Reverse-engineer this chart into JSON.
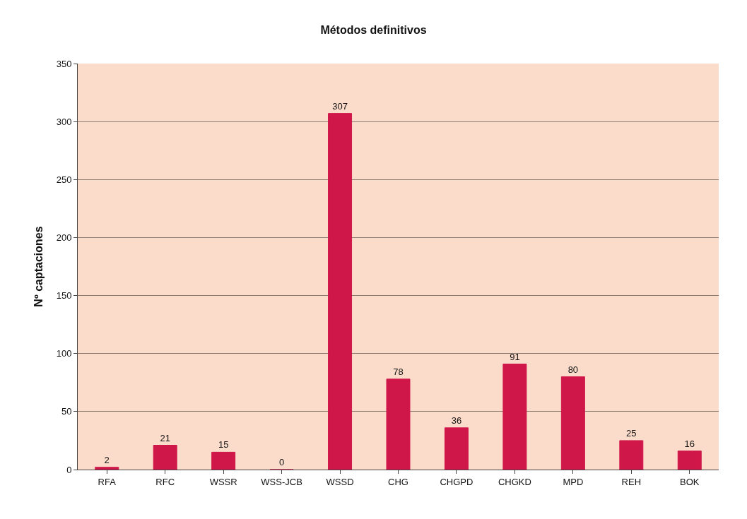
{
  "chart_data": {
    "type": "bar",
    "title": "Métodos definitivos",
    "ylabel": "Nº captaciones",
    "categories": [
      "RFA",
      "RFC",
      "WSSR",
      "WSS-JCB",
      "WSSD",
      "CHG",
      "CHGPD",
      "CHGKD",
      "MPD",
      "REH",
      "BOK"
    ],
    "values": [
      2,
      21,
      15,
      0,
      307,
      78,
      36,
      91,
      80,
      25,
      16
    ],
    "color": "#d0174a",
    "ylim": [
      0,
      350
    ],
    "yticks": [
      0,
      50,
      100,
      150,
      200,
      250,
      300,
      350
    ],
    "grid": "y",
    "data_labels": true,
    "legend": false
  }
}
